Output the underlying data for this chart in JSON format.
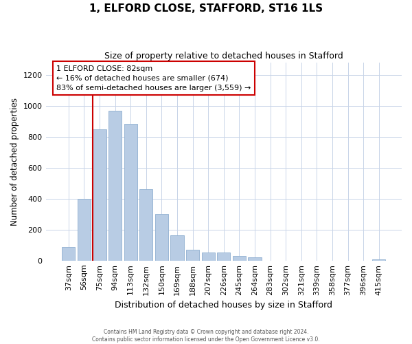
{
  "title": "1, ELFORD CLOSE, STAFFORD, ST16 1LS",
  "subtitle": "Size of property relative to detached houses in Stafford",
  "xlabel": "Distribution of detached houses by size in Stafford",
  "ylabel": "Number of detached properties",
  "categories": [
    "37sqm",
    "56sqm",
    "75sqm",
    "94sqm",
    "113sqm",
    "132sqm",
    "150sqm",
    "169sqm",
    "188sqm",
    "207sqm",
    "226sqm",
    "245sqm",
    "264sqm",
    "283sqm",
    "302sqm",
    "321sqm",
    "339sqm",
    "358sqm",
    "377sqm",
    "396sqm",
    "415sqm"
  ],
  "values": [
    90,
    400,
    848,
    968,
    882,
    460,
    300,
    162,
    72,
    52,
    52,
    32,
    20,
    0,
    0,
    0,
    0,
    0,
    0,
    0,
    10
  ],
  "bar_color": "#b8cce4",
  "bar_edge_color": "#8fafd0",
  "vline_color": "#cc0000",
  "annotation_text": "1 ELFORD CLOSE: 82sqm\n← 16% of detached houses are smaller (674)\n83% of semi-detached houses are larger (3,559) →",
  "annotation_box_color": "#ffffff",
  "annotation_box_edge": "#cc0000",
  "ylim": [
    0,
    1280
  ],
  "yticks": [
    0,
    200,
    400,
    600,
    800,
    1000,
    1200
  ],
  "background_color": "#ffffff",
  "grid_color": "#c8d4e8",
  "footer_line1": "Contains HM Land Registry data © Crown copyright and database right 2024.",
  "footer_line2": "Contains public sector information licensed under the Open Government Licence v3.0."
}
